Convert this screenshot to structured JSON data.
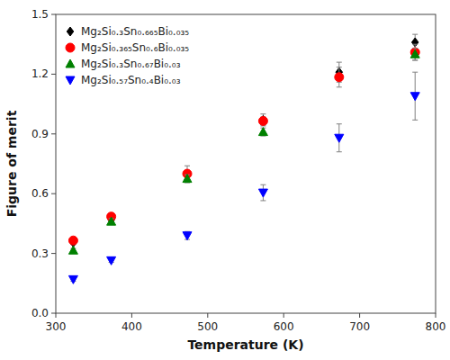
{
  "chart_data": {
    "type": "scatter",
    "xlabel": "Temperature (K)",
    "ylabel": "Figure of merit",
    "xlim": [
      300,
      800
    ],
    "ylim": [
      0.0,
      1.5
    ],
    "xticks": [
      300,
      400,
      500,
      600,
      700,
      800
    ],
    "yticks": [
      {
        "value": 0,
        "label": "0.0"
      },
      0.3,
      0.6,
      0.9,
      1.2,
      1.5
    ],
    "grid": false,
    "legend": "upper left",
    "series": [
      {
        "name": "Mg₂Si₀.₃Sn₀.₆₆₅Bi₀.₀₃₅",
        "color": "black",
        "marker": "diamond",
        "x": [
          323,
          373,
          573,
          673,
          773
        ],
        "values": [
          0.355,
          0.47,
          0.97,
          1.21,
          1.36
        ],
        "errors": [
          0.01,
          0.01,
          0.03,
          0.05,
          0.04
        ]
      },
      {
        "name": "Mg₂Si₀.₃₆₅Sn₀.₆Bi₀.₀₃₅",
        "color": "red",
        "marker": "circle",
        "x": [
          323,
          373,
          473,
          573,
          673,
          773
        ],
        "values": [
          0.365,
          0.485,
          0.7,
          0.965,
          1.185,
          1.31
        ],
        "errors": [
          0.01,
          0.015,
          0.04,
          0.02,
          0.05,
          0.04
        ]
      },
      {
        "name": "Mg₂Si₀.₃Sn₀.₆₇Bi₀.₀₃",
        "color": "green",
        "marker": "triangle-up",
        "x": [
          323,
          373,
          473,
          573,
          773
        ],
        "values": [
          0.315,
          0.46,
          0.675,
          0.91,
          1.3
        ],
        "errors": [
          0.01,
          0.015,
          0.02,
          0.02,
          0.03
        ]
      },
      {
        "name": "Mg₂Si₀.₅₇Sn₀.₄Bi₀.₀₃",
        "color": "blue",
        "marker": "triangle-down",
        "x": [
          323,
          373,
          473,
          573,
          673,
          773
        ],
        "values": [
          0.17,
          0.265,
          0.39,
          0.605,
          0.88,
          1.09
        ],
        "errors": [
          0.01,
          0.01,
          0.02,
          0.04,
          0.07,
          0.12
        ]
      }
    ]
  }
}
